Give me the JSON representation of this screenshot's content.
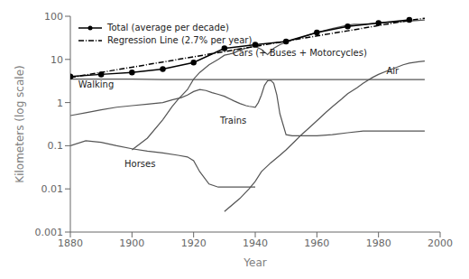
{
  "chart_data": {
    "type": "line",
    "xlabel": "Year",
    "ylabel": "Kilometers (log scale)",
    "xlim": [
      1880,
      2000
    ],
    "xticks": [
      1880,
      1900,
      1920,
      1940,
      1960,
      1980,
      2000
    ],
    "ylim": [
      0.001,
      100
    ],
    "yticks": [
      0.001,
      0.01,
      0.1,
      1,
      10,
      100
    ],
    "log": "y",
    "grid": false,
    "legend": "upper left",
    "series": [
      {
        "x": [
          1880,
          1900,
          1910,
          1920,
          1930,
          1940,
          1950,
          1960,
          1970,
          1980,
          1990,
          1995
        ],
        "values": [
          3.5,
          3.5,
          3.4,
          3.4,
          3.4,
          3.4,
          3.4,
          3.4,
          3.4,
          3.4,
          3.4,
          3.4
        ],
        "color": "#555555"
      },
      {
        "x": [
          1880,
          1885,
          1890,
          1895,
          1900,
          1905,
          1910,
          1915,
          1918,
          1920,
          1922,
          1925,
          1928,
          1930,
          1935,
          1940
        ],
        "values": [
          0.1,
          0.13,
          0.12,
          0.1,
          0.085,
          0.075,
          0.068,
          0.06,
          0.055,
          0.045,
          0.025,
          0.013,
          0.011,
          0.011,
          0.011,
          0.011
        ],
        "color": "#555555"
      },
      {
        "x": [
          1880,
          1885,
          1890,
          1895,
          1900,
          1905,
          1910,
          1913,
          1916,
          1918,
          1920,
          1922,
          1924,
          1926,
          1928,
          1930,
          1933,
          1935,
          1937,
          1938,
          1939,
          1940,
          1941,
          1942,
          1943,
          1944,
          1945,
          1946,
          1947,
          1948,
          1950,
          1952,
          1955,
          1960,
          1965,
          1970,
          1975,
          1980,
          1985,
          1990,
          1995
        ],
        "values": [
          0.5,
          0.58,
          0.68,
          0.78,
          0.85,
          0.92,
          1.0,
          1.15,
          1.3,
          1.5,
          1.8,
          2.0,
          1.9,
          1.7,
          1.55,
          1.4,
          1.1,
          0.95,
          0.85,
          0.82,
          0.8,
          0.78,
          1.0,
          1.5,
          2.5,
          3.2,
          3.3,
          2.8,
          1.5,
          0.55,
          0.18,
          0.17,
          0.17,
          0.17,
          0.18,
          0.2,
          0.22,
          0.22,
          0.22,
          0.22,
          0.22
        ],
        "color": "#555555"
      },
      {
        "x": [
          1900,
          1905,
          1910,
          1913,
          1915,
          1918,
          1920,
          1922,
          1925,
          1928,
          1930,
          1933,
          1935,
          1938,
          1940,
          1942,
          1944,
          1946,
          1948,
          1950,
          1952,
          1955,
          1958,
          1960,
          1963,
          1965,
          1968,
          1970,
          1972,
          1975,
          1978,
          1980,
          1983,
          1985,
          1988,
          1990,
          1993,
          1995
        ],
        "values": [
          0.08,
          0.15,
          0.4,
          0.8,
          1.2,
          2.0,
          3.5,
          5.0,
          7.5,
          10.0,
          12.5,
          14.0,
          16.5,
          19.0,
          20.0,
          17.0,
          13.0,
          18.0,
          22.0,
          25.0,
          28.0,
          32.0,
          38.0,
          42.0,
          48.0,
          52.0,
          58.0,
          62.0,
          65.0,
          65.0,
          68.0,
          70.0,
          72.0,
          73.0,
          75.0,
          77.0,
          80.0,
          82.0
        ],
        "color": "#555555"
      },
      {
        "x": [
          1930,
          1935,
          1938,
          1940,
          1942,
          1945,
          1948,
          1950,
          1953,
          1955,
          1958,
          1960,
          1963,
          1965,
          1968,
          1970,
          1973,
          1975,
          1978,
          1980,
          1983,
          1985,
          1988,
          1990,
          1993,
          1995
        ],
        "values": [
          0.003,
          0.006,
          0.01,
          0.015,
          0.025,
          0.04,
          0.06,
          0.08,
          0.13,
          0.18,
          0.28,
          0.38,
          0.6,
          0.8,
          1.2,
          1.6,
          2.2,
          2.8,
          3.8,
          4.5,
          5.5,
          6.2,
          7.5,
          8.2,
          8.8,
          9.2
        ],
        "color": "#555555"
      },
      {
        "name": "Total (average per decade)",
        "x": [
          1880,
          1890,
          1900,
          1910,
          1920,
          1930,
          1940,
          1950,
          1960,
          1970,
          1980,
          1990
        ],
        "values": [
          4.0,
          4.5,
          5.0,
          6.0,
          8.5,
          18.0,
          22.0,
          26.0,
          42.0,
          58.0,
          70.0,
          82.0
        ],
        "color": "#000000",
        "marker": "circle"
      },
      {
        "name": "Regression Line (2.7% per year)",
        "x": [
          1880,
          1890,
          1900,
          1910,
          1920,
          1930,
          1940,
          1950,
          1960,
          1970,
          1980,
          1990,
          1995
        ],
        "values": [
          3.8,
          5.0,
          6.6,
          8.7,
          11.5,
          15.2,
          20.0,
          26.5,
          35.0,
          46.0,
          61.0,
          80.0,
          90.0
        ],
        "color": "#000000",
        "line_style": "dashdot"
      }
    ],
    "annotations": [
      {
        "text": "Cars (+ Buses + Motorcycles)",
        "x": 1932,
        "y": 14.0
      },
      {
        "text": "Air",
        "x": 1982,
        "y": 5.5
      },
      {
        "text": "Walking",
        "x": 1882,
        "y": 2.6
      },
      {
        "text": "Trains",
        "x": 1928,
        "y": 0.38
      },
      {
        "text": "Horses",
        "x": 1897,
        "y": 0.038
      }
    ]
  }
}
